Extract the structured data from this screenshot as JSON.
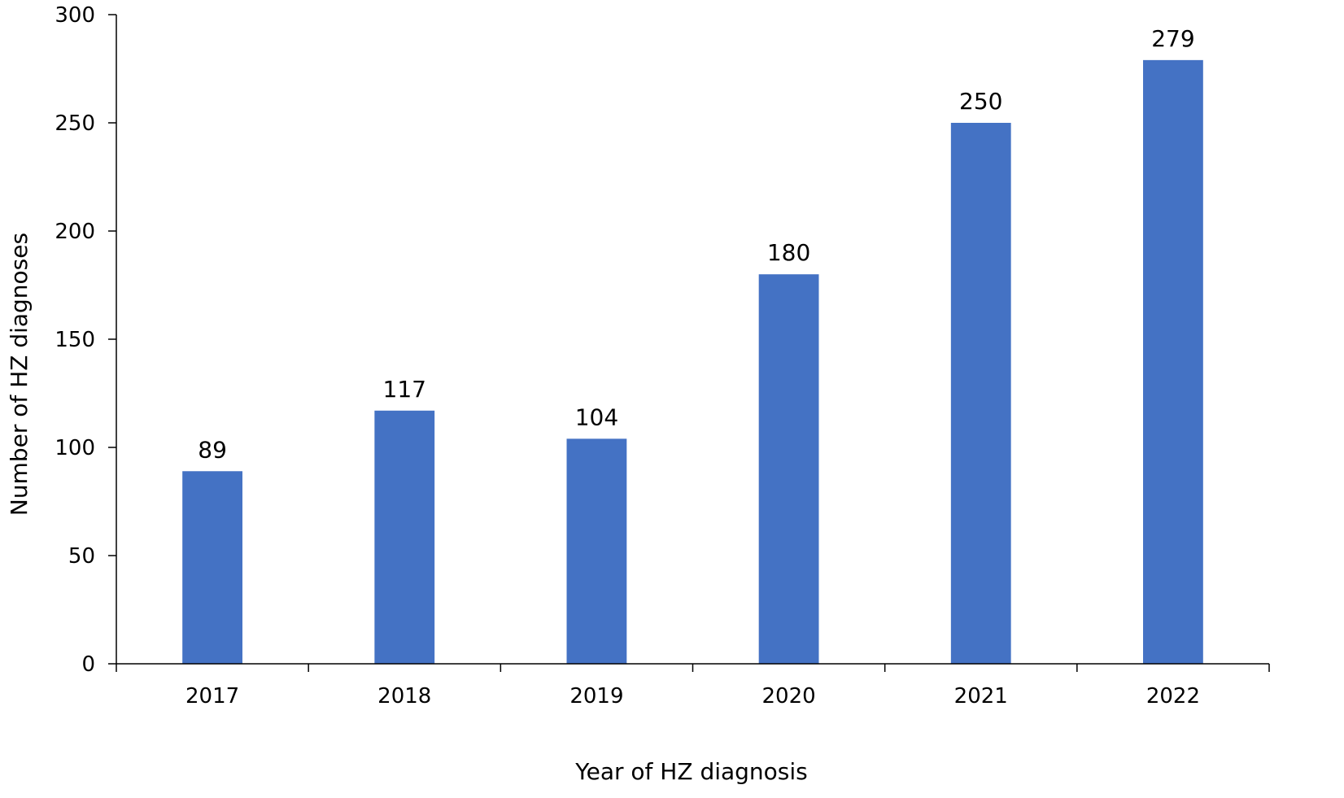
{
  "chart_data": {
    "type": "bar",
    "title": "",
    "xlabel": "Year of HZ diagnosis",
    "ylabel": "Number of HZ diagnoses",
    "categories": [
      "2017",
      "2018",
      "2019",
      "2020",
      "2021",
      "2022"
    ],
    "values": [
      89,
      117,
      104,
      180,
      250,
      279
    ],
    "ylim": [
      0,
      300
    ],
    "yticks": [
      0,
      50,
      100,
      150,
      200,
      250,
      300
    ],
    "grid": false,
    "legend": "none",
    "bar_color": "#4472C4",
    "data_labels": true
  }
}
